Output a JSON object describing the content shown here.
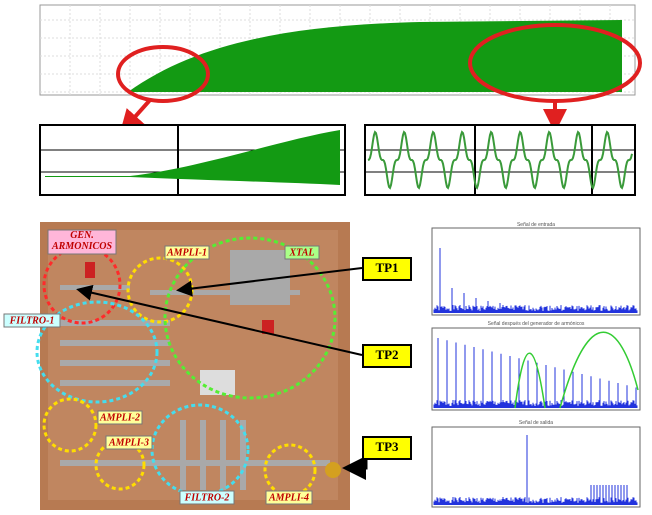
{
  "labels": {
    "gen": "GEN. ARMONICOS",
    "ampli1": "AMPLI-1",
    "xtal": "XTAL",
    "filtro1": "FILTRO-1",
    "ampli2": "AMPLI-2",
    "ampli3": "AMPLI-3",
    "filtro2": "FILTRO-2",
    "ampli4": "AMPLI-4"
  },
  "test_points": [
    "TP1",
    "TP2",
    "TP3"
  ],
  "spectra_titles": [
    "Señal de entrada",
    "Señal después del generador de armónicos",
    "Señal de salida"
  ]
}
